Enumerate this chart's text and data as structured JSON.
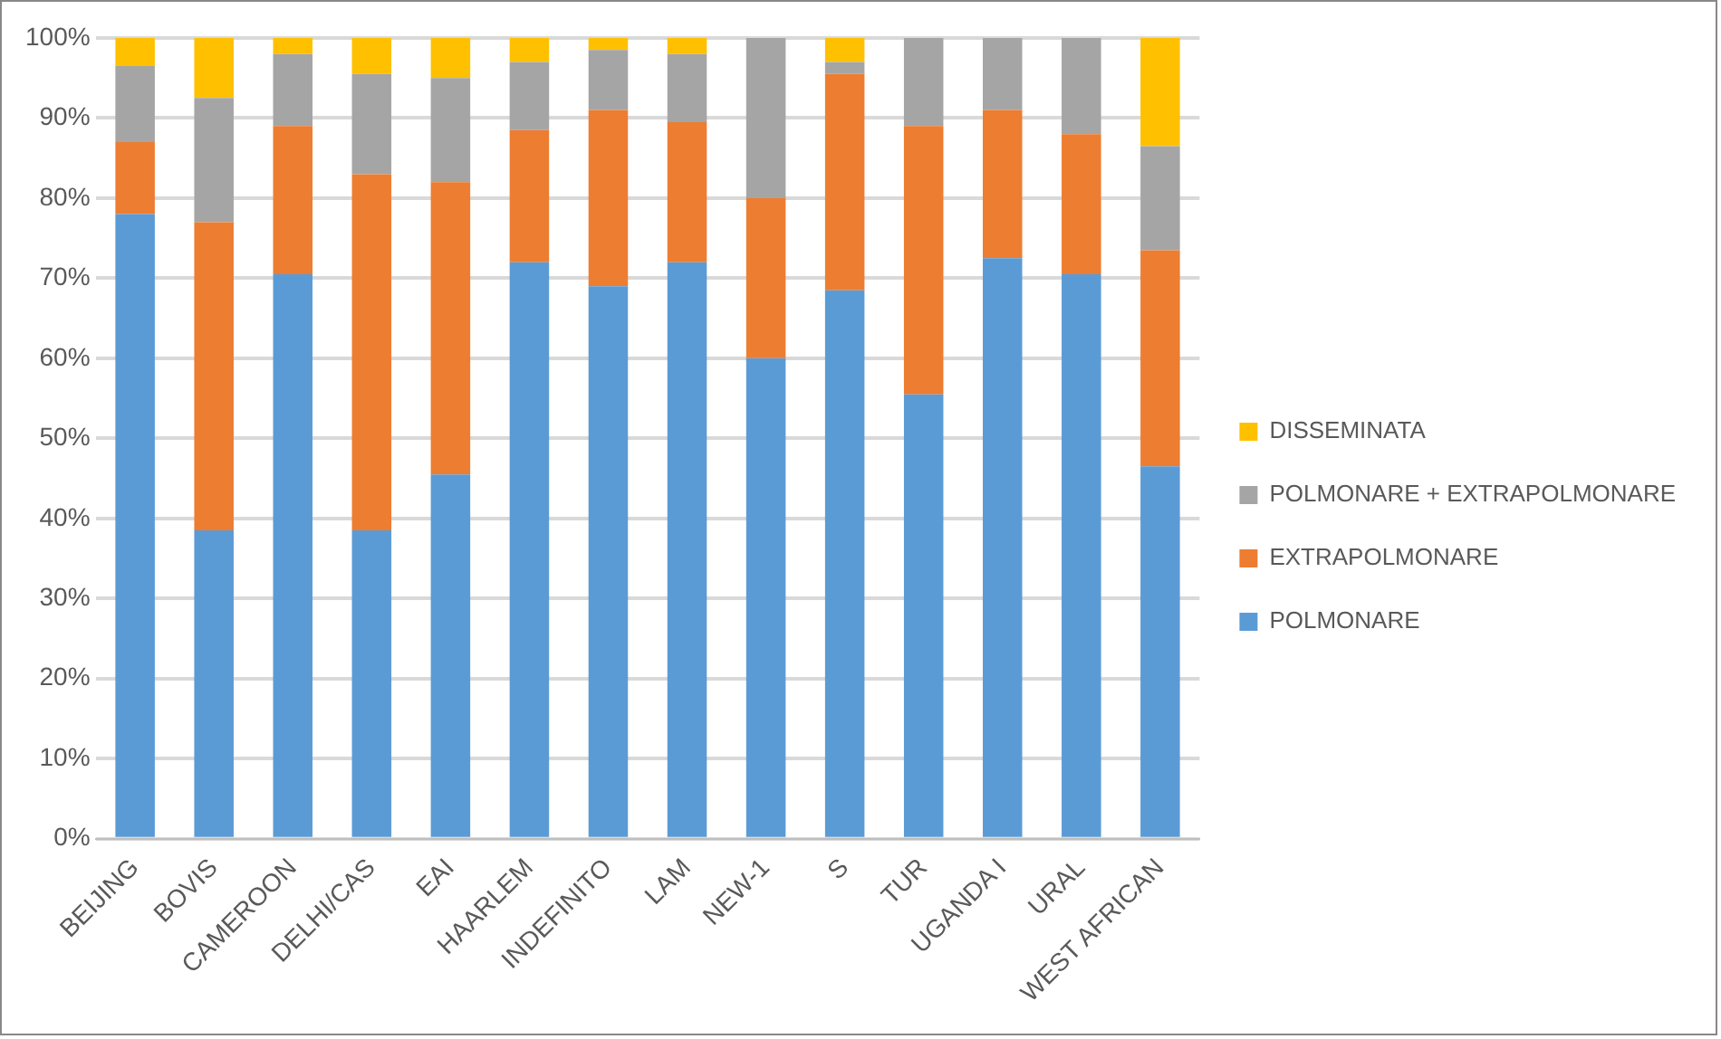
{
  "chart_data": {
    "type": "bar",
    "stacked": true,
    "categories": [
      "BEIJING",
      "BOVIS",
      "CAMEROON",
      "DELHI/CAS",
      "EAI",
      "HAARLEM",
      "INDEFINITO",
      "LAM",
      "NEW-1",
      "S",
      "TUR",
      "UGANDA I",
      "URAL",
      "WEST AFRICAN"
    ],
    "series": [
      {
        "name": "POLMONARE",
        "color": "#5b9bd5",
        "values": [
          78,
          38.5,
          70.5,
          38.5,
          45.5,
          72,
          69,
          72,
          60,
          68.5,
          55.5,
          72.5,
          70.5,
          46.5
        ]
      },
      {
        "name": "EXTRAPOLMONARE",
        "color": "#ed7d31",
        "values": [
          9,
          38.5,
          18.5,
          44.5,
          36.5,
          16.5,
          22,
          17.5,
          20,
          27,
          33.5,
          18.5,
          17.5,
          27
        ]
      },
      {
        "name": "POLMONARE + EXTRAPOLMONARE",
        "color": "#a5a5a5",
        "values": [
          9.5,
          15.5,
          9,
          12.5,
          13,
          8.5,
          7.5,
          8.5,
          20,
          1.5,
          11,
          9,
          12,
          13
        ]
      },
      {
        "name": "DISSEMINATA",
        "color": "#ffc000",
        "values": [
          3.5,
          7.5,
          2,
          4.5,
          5,
          3,
          1.5,
          2,
          0,
          3,
          0,
          0,
          0,
          13.5
        ]
      }
    ],
    "ylim": [
      0,
      100
    ],
    "yticks": [
      {
        "value": 0,
        "label": "0%"
      },
      {
        "value": 10,
        "label": "10%"
      },
      {
        "value": 20,
        "label": "20%"
      },
      {
        "value": 30,
        "label": "30%"
      },
      {
        "value": 40,
        "label": "40%"
      },
      {
        "value": 50,
        "label": "50%"
      },
      {
        "value": 60,
        "label": "60%"
      },
      {
        "value": 70,
        "label": "70%"
      },
      {
        "value": 80,
        "label": "80%"
      },
      {
        "value": 90,
        "label": "90%"
      },
      {
        "value": 100,
        "label": "100%"
      }
    ],
    "grid": "y",
    "legend": "right"
  }
}
